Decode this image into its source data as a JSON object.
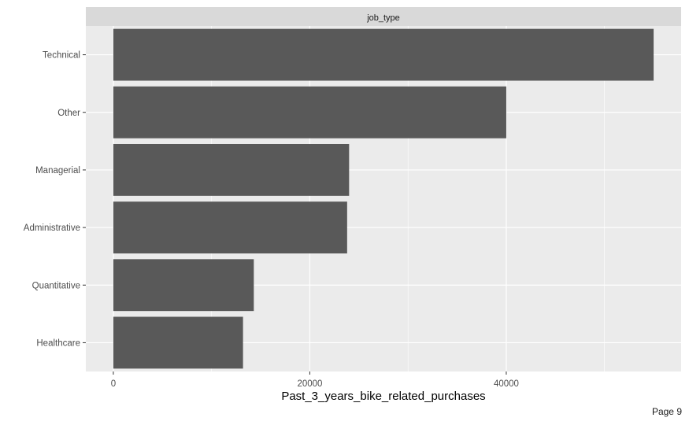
{
  "chart_data": {
    "type": "bar",
    "orientation": "horizontal",
    "facet_label": "job_type",
    "categories": [
      "Technical",
      "Other",
      "Managerial",
      "Administrative",
      "Quantitative",
      "Healthcare"
    ],
    "values": [
      55000,
      40000,
      24000,
      23800,
      14300,
      13200
    ],
    "xlabel": "Past_3_years_bike_related_purchases",
    "ylabel": "",
    "xlim": [
      -2800,
      57800
    ],
    "x_ticks": [
      0,
      20000,
      40000
    ],
    "x_minor_ticks": [
      10000,
      30000,
      50000
    ],
    "grid": true,
    "legend": "none",
    "colors": {
      "bar": "#595959",
      "panel_background": "#ebebeb",
      "strip_background": "#d9d9d9",
      "grid": "#ffffff"
    }
  },
  "footer": {
    "page_label": "Page 9"
  }
}
